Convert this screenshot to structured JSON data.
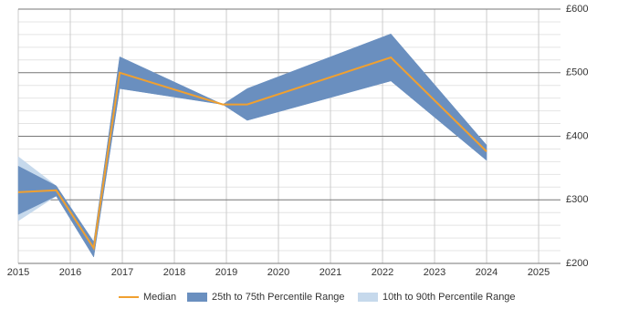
{
  "chart_data": {
    "type": "band_line",
    "x": [
      2015,
      2015.73,
      2016.45,
      2016.95,
      2018.93,
      2019.4,
      2022.16,
      2024.0
    ],
    "series": [
      {
        "name": "10th to 90th Percentile Range",
        "color": "#c6d9ec",
        "upper": [
          368,
          322,
          234,
          525,
          450,
          475,
          561,
          386
        ],
        "lower": [
          267,
          306,
          210,
          475,
          450,
          425,
          487,
          362
        ]
      },
      {
        "name": "25th to 75th Percentile Range",
        "color": "#6a8fbf",
        "upper": [
          353,
          322,
          234,
          525,
          450,
          475,
          561,
          386
        ],
        "lower": [
          277,
          306,
          210,
          475,
          450,
          425,
          487,
          362
        ]
      },
      {
        "name": "Median",
        "color": "#f0a030",
        "values": [
          312,
          315,
          224,
          500,
          450,
          450,
          524,
          376
        ]
      }
    ],
    "xlim": [
      2015,
      2025.42
    ],
    "xticks": [
      2015,
      2016,
      2017,
      2018,
      2019,
      2020,
      2021,
      2022,
      2023,
      2024,
      2025
    ],
    "ylim": [
      200,
      600
    ],
    "yticks": [
      {
        "value": 200,
        "label": "£200"
      },
      {
        "value": 300,
        "label": "£300"
      },
      {
        "value": 400,
        "label": "£400"
      },
      {
        "value": 500,
        "label": "£500"
      },
      {
        "value": 600,
        "label": "£600"
      }
    ],
    "grid": true
  }
}
